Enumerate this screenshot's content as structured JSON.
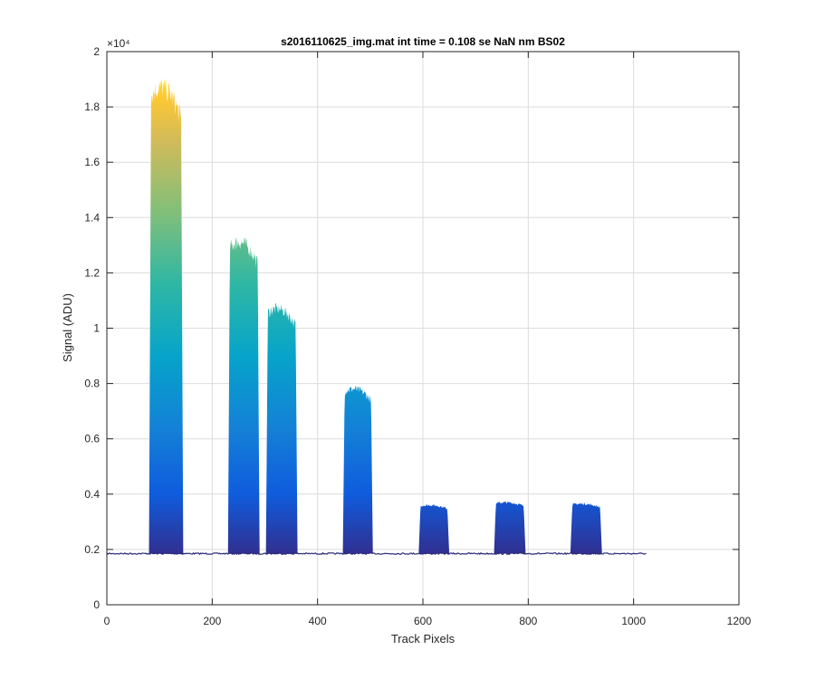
{
  "chart_data": {
    "type": "area",
    "title": "s2016110625_img.mat int time = 0.108 se  NaN nm BS02",
    "xlabel": "Track Pixels",
    "ylabel": "Signal (ADU)",
    "xlim": [
      0,
      1200
    ],
    "ylim": [
      0,
      20000
    ],
    "x_ticks": [
      "0",
      "200",
      "400",
      "600",
      "800",
      "1000",
      "1200"
    ],
    "x_tick_values": [
      0,
      200,
      400,
      600,
      800,
      1000,
      1200
    ],
    "y_ticks": [
      "0",
      "0.2",
      "0.4",
      "0.6",
      "0.8",
      "1",
      "1.2",
      "1.4",
      "1.6",
      "1.8",
      "2"
    ],
    "y_tick_values": [
      0,
      2000,
      4000,
      6000,
      8000,
      10000,
      12000,
      14000,
      16000,
      18000,
      20000
    ],
    "y_exponent_label": "×10⁴",
    "grid": true,
    "colormap": "parula",
    "baseline": 1850,
    "pixel_range": [
      0,
      1024
    ],
    "series": [
      {
        "x_start": 80,
        "x_end": 145,
        "peak": 18700
      },
      {
        "x_start": 230,
        "x_end": 290,
        "peak": 13100
      },
      {
        "x_start": 302,
        "x_end": 362,
        "peak": 10700
      },
      {
        "x_start": 448,
        "x_end": 505,
        "peak": 7800
      },
      {
        "x_start": 592,
        "x_end": 650,
        "peak": 3600
      },
      {
        "x_start": 735,
        "x_end": 795,
        "peak": 3700
      },
      {
        "x_start": 880,
        "x_end": 940,
        "peak": 3650
      }
    ],
    "colors": {
      "low": "#352A87",
      "mid_low": "#0F5CDD",
      "mid": "#1481D6",
      "mid_high": "#06A4CA",
      "high": "#2EB7A4",
      "higher": "#87BF77",
      "very_high": "#D1BB59",
      "top": "#FEC832",
      "max": "#F9FB0E",
      "baseline_line": "#2C2A78"
    }
  }
}
